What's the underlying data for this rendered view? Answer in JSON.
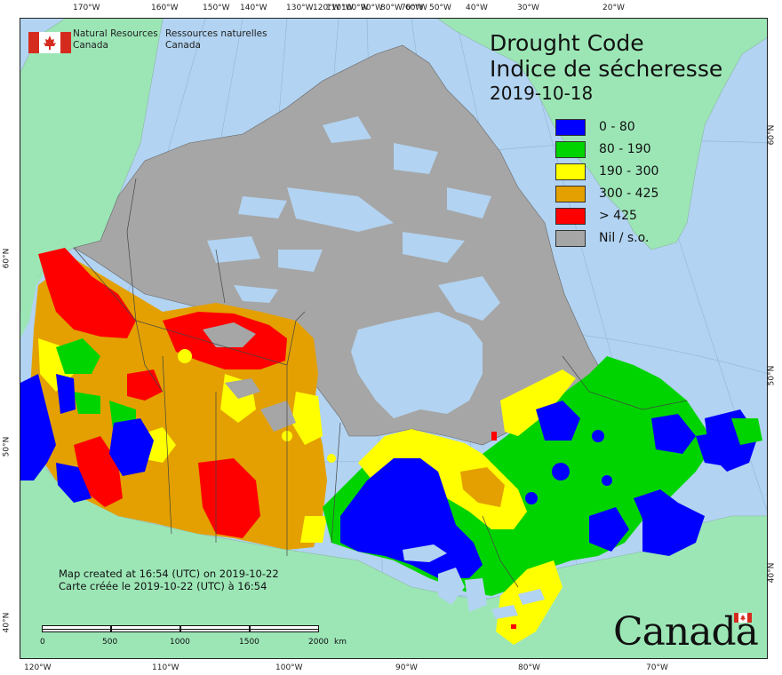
{
  "agency": {
    "name_en_line1": "Natural Resources",
    "name_en_line2": "Canada",
    "name_fr_line1": "Ressources naturelles",
    "name_fr_line2": "Canada"
  },
  "title": {
    "line1": "Drought Code",
    "line2": "Indice de sécheresse",
    "date": "2019-10-18"
  },
  "legend": [
    {
      "label": "0 - 80",
      "color": "#0000ff"
    },
    {
      "label": "80 - 190",
      "color": "#00d400"
    },
    {
      "label": "190 - 300",
      "color": "#ffff00"
    },
    {
      "label": "300 - 425",
      "color": "#e3a000"
    },
    {
      "label": "> 425",
      "color": "#ff0000"
    },
    {
      "label": "Nil / s.o.",
      "color": "#a6a6a6"
    }
  ],
  "colors": {
    "ocean": "#b2d3f1",
    "foreign_land": "#9ce6b6",
    "nil": "#a6a6a6",
    "border": "#444444"
  },
  "ticks_top": [
    "170°W",
    "160°W",
    "150°W",
    "140°W",
    "130°W",
    "120°W",
    "110°W",
    "100°W",
    "90°W",
    "80°W",
    "70°W",
    "60°W",
    "50°W",
    "40°W",
    "30°W",
    "20°W"
  ],
  "ticks_bottom": [
    "120°W",
    "110°W",
    "100°W",
    "90°W",
    "80°W",
    "70°W"
  ],
  "ticks_left": [
    "60°N",
    "50°N",
    "40°N"
  ],
  "ticks_right": [
    "60°N",
    "50°N",
    "40°N"
  ],
  "credits": {
    "line1": "Map created at 16:54 (UTC) on 2019-10-22",
    "line2": "Carte créée le 2019-10-22 (UTC) à 16:54"
  },
  "scale": {
    "labels": [
      "0",
      "500",
      "1000",
      "1500",
      "2000"
    ],
    "unit": "km"
  },
  "wordmark": "Canada"
}
